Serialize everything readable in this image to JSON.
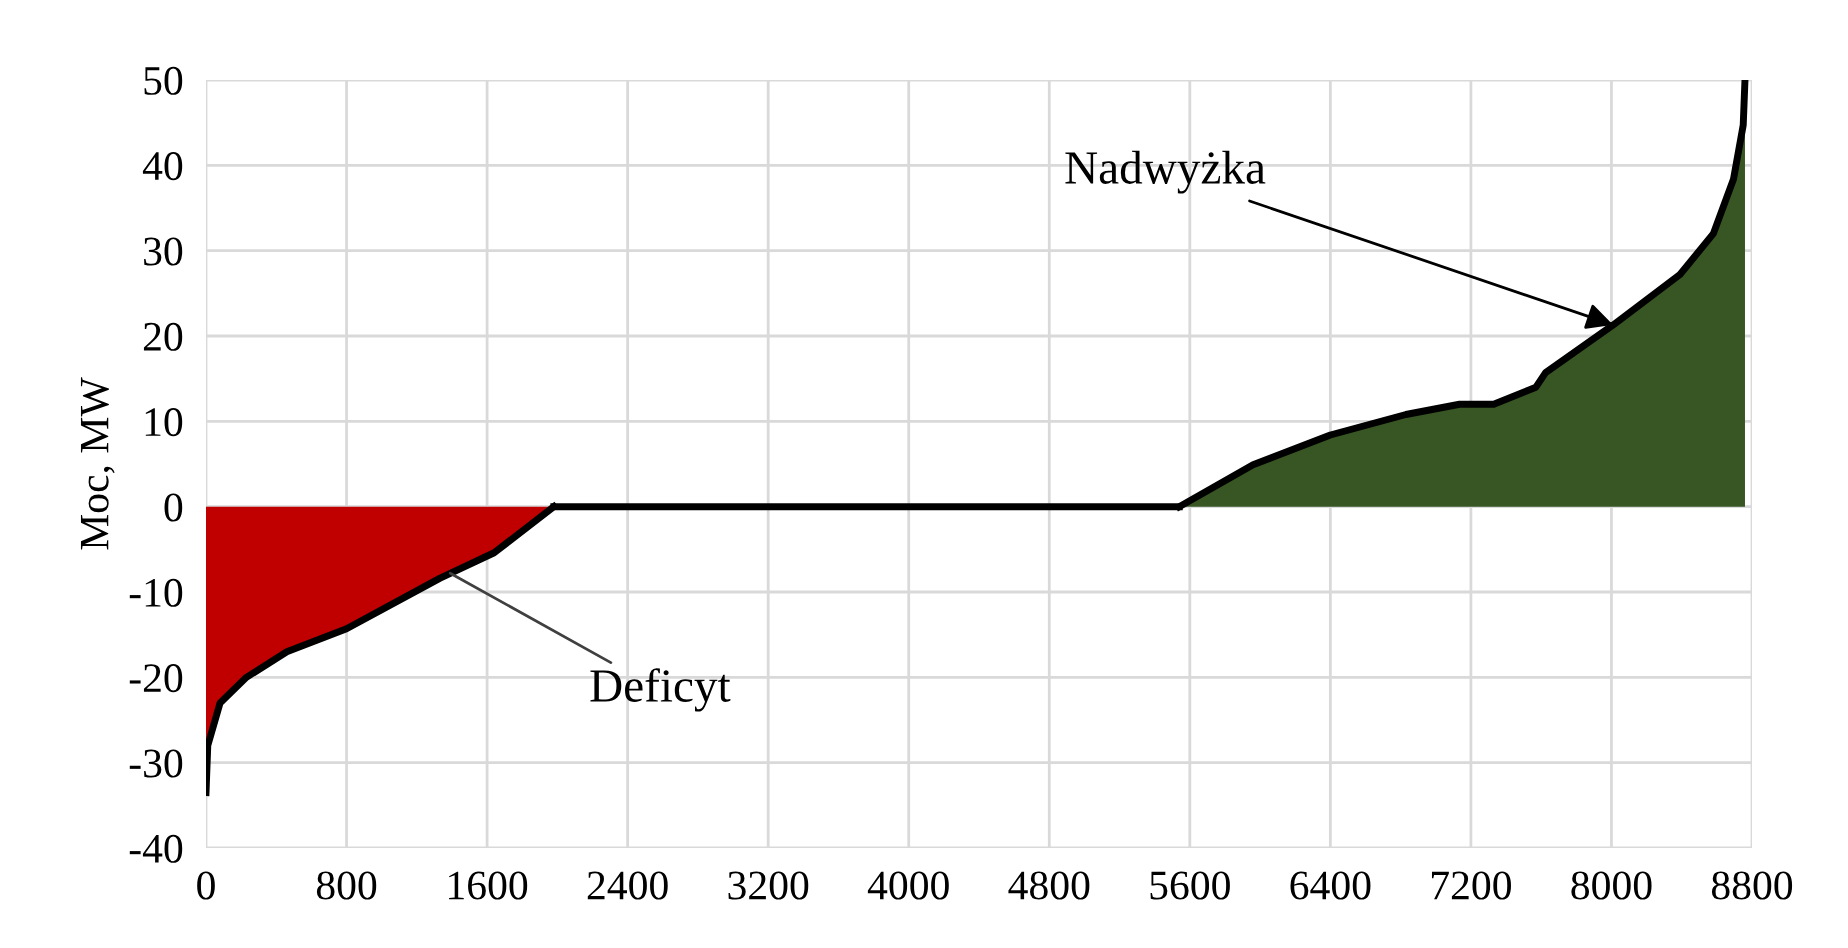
{
  "chart_data": {
    "type": "area",
    "ylabel": "Moc, MW",
    "series": [
      {
        "color": "#c00000",
        "x": [
          0,
          10,
          80,
          230,
          460,
          800,
          1330,
          1640,
          1980
        ],
        "values": [
          -33.5,
          -28,
          -23,
          -20,
          -17,
          -14.3,
          -8.4,
          -5.4,
          0
        ]
      },
      {
        "type": "line",
        "color": "#000000",
        "x": [
          1980,
          5540
        ],
        "values": [
          0,
          0
        ]
      },
      {
        "color": "#375623",
        "x": [
          5540,
          5960,
          6400,
          6830,
          7135,
          7330,
          7570,
          7625,
          8010,
          8390,
          8580,
          8695,
          8750,
          8760
        ],
        "values": [
          0,
          4.9,
          8.4,
          10.8,
          12,
          12,
          14,
          15.7,
          21.3,
          27.2,
          32,
          38.4,
          44.7,
          50
        ]
      }
    ],
    "annotations": [
      {
        "text": "Deficyt",
        "x": 1390,
        "y": -7.8
      },
      {
        "text": "Nadwyżka",
        "x": 8010,
        "y": 21.3
      }
    ],
    "xlim": [
      0,
      8800
    ],
    "xticks": [
      0,
      800,
      1600,
      2400,
      3200,
      4000,
      4800,
      5600,
      6400,
      7200,
      8000,
      8800
    ],
    "ylim": [
      -40,
      50
    ],
    "yticks": [
      -40,
      -30,
      -20,
      -10,
      0,
      10,
      20,
      30,
      40,
      50
    ],
    "grid": true
  }
}
